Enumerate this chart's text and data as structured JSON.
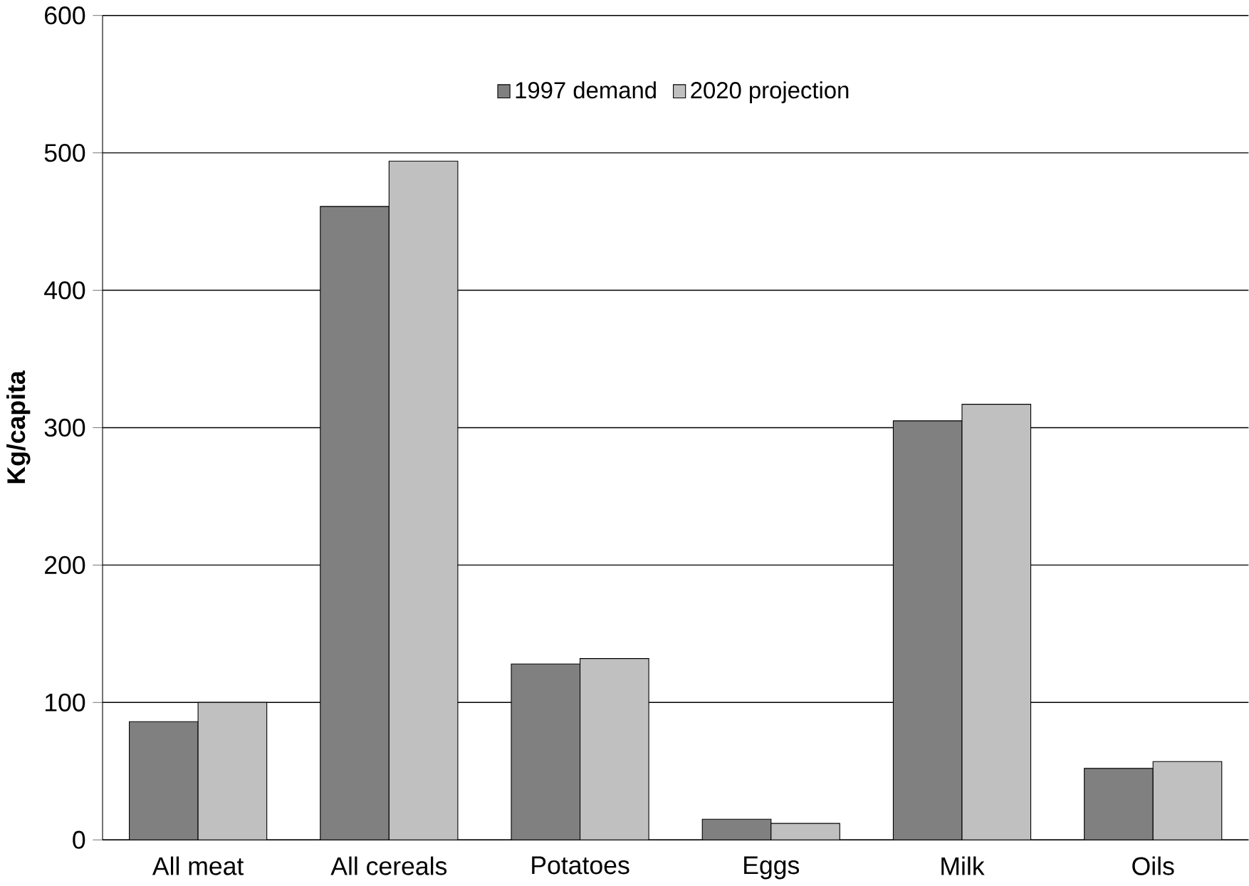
{
  "chart_data": {
    "type": "bar",
    "ylabel": "Kg/capita",
    "categories": [
      "All meat",
      "All cereals",
      "Potatoes",
      "Eggs",
      "Milk",
      "Oils"
    ],
    "series": [
      {
        "name": "1997 demand",
        "color": "#808080",
        "values": [
          86,
          461,
          128,
          15,
          305,
          52
        ]
      },
      {
        "name": "2020 projection",
        "color": "#c0c0c0",
        "values": [
          100,
          494,
          132,
          12,
          317,
          57
        ]
      }
    ],
    "ylim": [
      0,
      600
    ],
    "yticks": [
      0,
      100,
      200,
      300,
      400,
      500,
      600
    ],
    "grid": "y",
    "legend": "top"
  }
}
